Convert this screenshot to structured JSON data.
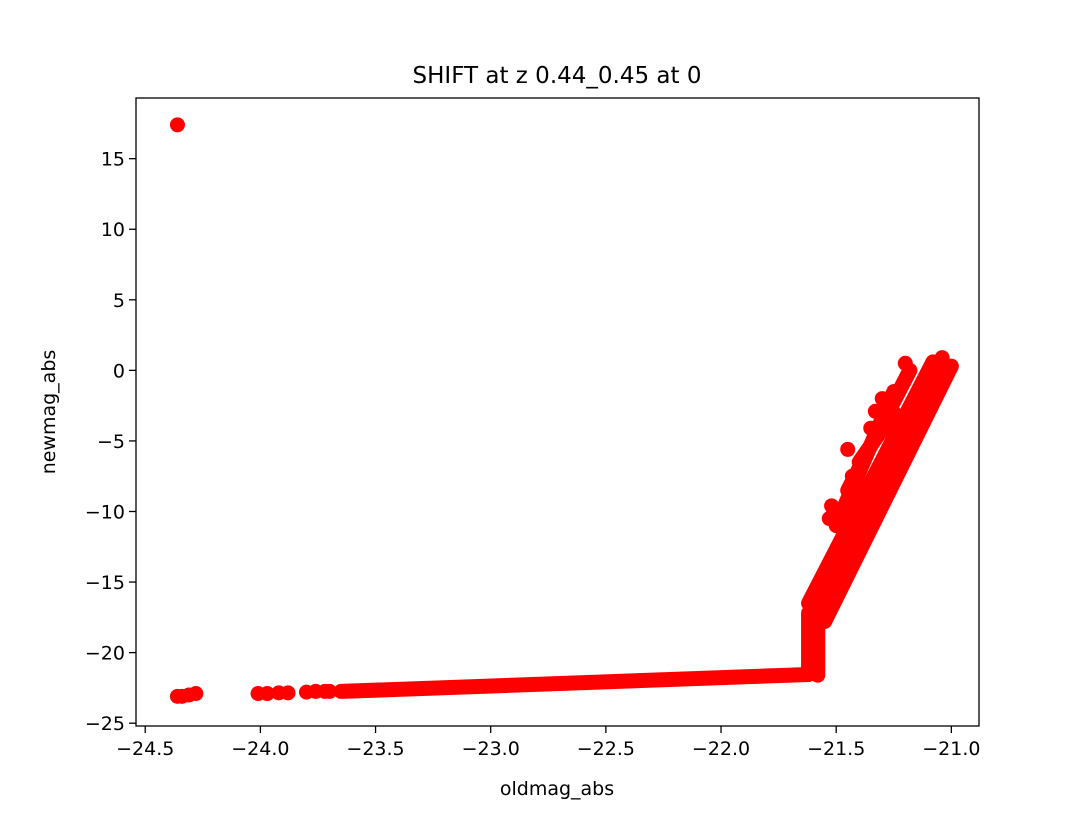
{
  "chart_data": {
    "type": "scatter",
    "title": "SHIFT at z 0.44_0.45 at 0",
    "xlabel": "oldmag_abs",
    "ylabel": "newmag_abs",
    "xlim": [
      -24.54,
      -20.88
    ],
    "ylim": [
      -25.2,
      19.3
    ],
    "xticks": [
      -24.5,
      -24.0,
      -23.5,
      -23.0,
      -22.5,
      -22.0,
      -21.5,
      -21.0
    ],
    "xtick_labels": [
      "−24.5",
      "−24.0",
      "−23.5",
      "−23.0",
      "−22.5",
      "−22.0",
      "−21.5",
      "−21.0"
    ],
    "yticks": [
      -25,
      -20,
      -15,
      -10,
      -5,
      0,
      5,
      10,
      15
    ],
    "ytick_labels": [
      "−25",
      "−20",
      "−15",
      "−10",
      "−5",
      "0",
      "5",
      "10",
      "15"
    ],
    "grid": false,
    "marker_color": "#ff0000",
    "points": [
      {
        "x": -24.36,
        "y": 17.4
      },
      {
        "x": -24.36,
        "y": -23.1
      },
      {
        "x": -24.34,
        "y": -23.1
      },
      {
        "x": -24.31,
        "y": -23.0
      },
      {
        "x": -24.28,
        "y": -22.9
      },
      {
        "x": -24.01,
        "y": -22.9
      },
      {
        "x": -23.97,
        "y": -22.9
      },
      {
        "x": -23.92,
        "y": -22.85
      },
      {
        "x": -23.88,
        "y": -22.85
      },
      {
        "x": -23.8,
        "y": -22.8
      },
      {
        "x": -23.76,
        "y": -22.75
      },
      {
        "x": -23.72,
        "y": -22.75
      },
      {
        "x": -23.7,
        "y": -22.75
      },
      {
        "x": -21.35,
        "y": -4.1
      },
      {
        "x": -21.33,
        "y": -2.9
      },
      {
        "x": -21.3,
        "y": -2.0
      },
      {
        "x": -21.2,
        "y": 0.5
      },
      {
        "x": -21.43,
        "y": -7.5
      },
      {
        "x": -21.53,
        "y": -10.5
      },
      {
        "x": -21.52,
        "y": -9.6
      },
      {
        "x": -21.45,
        "y": -5.6
      }
    ],
    "bands": [
      {
        "x1": -23.65,
        "x2": -21.62,
        "y1": -22.75,
        "y2": -21.55
      },
      {
        "x1": -21.62,
        "x2": -21.62,
        "y1": -21.55,
        "y2": -17.2
      },
      {
        "x1": -21.58,
        "x2": -21.58,
        "y1": -21.6,
        "y2": -17.0
      },
      {
        "x1": -21.6,
        "x2": -21.04,
        "y1": -17.2,
        "y2": 0.9
      },
      {
        "x1": -21.62,
        "x2": -21.08,
        "y1": -16.5,
        "y2": 0.6
      },
      {
        "x1": -21.55,
        "x2": -21.0,
        "y1": -17.8,
        "y2": 0.3
      },
      {
        "x1": -21.5,
        "x2": -21.25,
        "y1": -11.0,
        "y2": -1.5
      },
      {
        "x1": -21.45,
        "x2": -21.18,
        "y1": -8.5,
        "y2": 0.0
      },
      {
        "x1": -21.4,
        "x2": -21.25,
        "y1": -6.5,
        "y2": -3.0
      }
    ]
  }
}
